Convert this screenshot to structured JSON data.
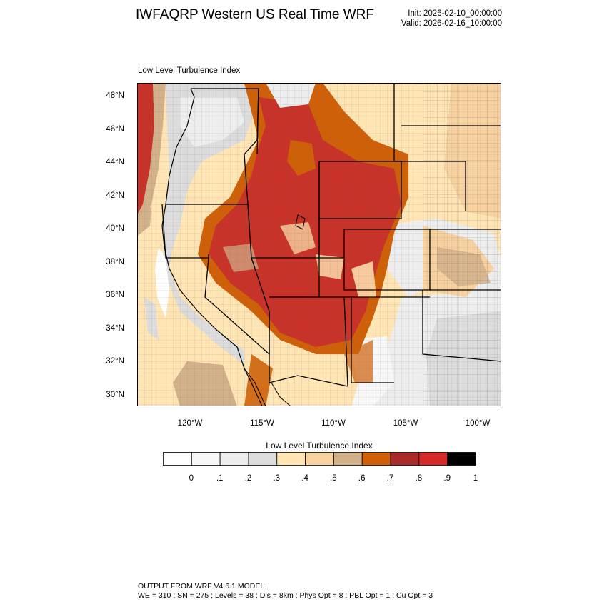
{
  "header": {
    "title": "IWFAQRP Western US Real Time WRF",
    "init": "Init: 2026-02-10_00:00:00",
    "valid": "Valid: 2026-02-16_10:00:00"
  },
  "map": {
    "subtitle": "Low Level Turbulence Index",
    "lat_labels": [
      "48°N",
      "46°N",
      "44°N",
      "42°N",
      "40°N",
      "38°N",
      "36°N",
      "34°N",
      "32°N",
      "30°N"
    ],
    "lon_labels": [
      "120°W",
      "115°W",
      "110°W",
      "105°W",
      "100°W"
    ],
    "lat_range": [
      29.5,
      48.7
    ],
    "lon_range": [
      -123.8,
      -98.4
    ]
  },
  "colorbar": {
    "title": "Low Level Turbulence Index",
    "labels": [
      "0",
      ".1",
      ".2",
      ".3",
      ".4",
      ".5",
      ".6",
      ".7",
      ".8",
      ".9",
      "1"
    ],
    "colors": [
      "#ffffff",
      "#f7f7f7",
      "#ededed",
      "#dcdcdc",
      "#ffe4b4",
      "#f7d2a0",
      "#d2b08a",
      "#cf6008",
      "#a92b29",
      "#d42a2a",
      "#000000"
    ]
  },
  "footer": {
    "line1": "OUTPUT FROM WRF V4.6.1 MODEL",
    "line2": "WE = 310 ; SN = 275 ; Levels = 38 ; Dis = 8km ; Phys Opt = 8 ; PBL Opt = 1 ; Cu Opt = 3"
  }
}
